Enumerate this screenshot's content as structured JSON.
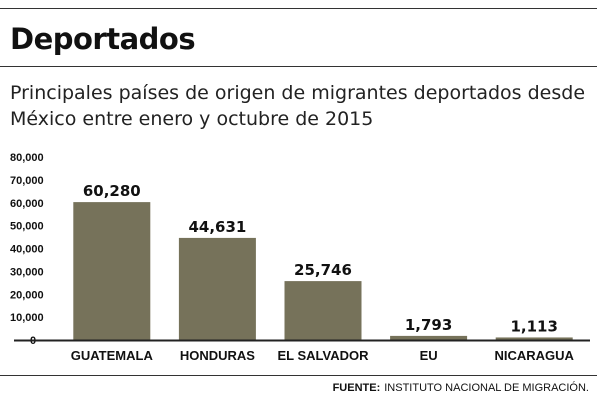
{
  "header": {
    "title": "Deportados",
    "subtitle": "Principales países de origen de migrantes deportados desde México entre enero y octubre de 2015"
  },
  "footer": {
    "source_label": "FUENTE:",
    "source_text": "INSTITUTO NACIONAL DE MIGRACIÓN."
  },
  "colors": {
    "bar": "#76725a",
    "axis": "#222222",
    "text": "#111111"
  },
  "chart_data": {
    "type": "bar",
    "categories": [
      "GUATEMALA",
      "HONDURAS",
      "EL SALVADOR",
      "EU",
      "NICARAGUA"
    ],
    "values": [
      60280,
      44631,
      25746,
      1793,
      1113
    ],
    "value_labels": [
      "60,280",
      "44,631",
      "25,746",
      "1,793",
      "1,113"
    ],
    "ylim": [
      0,
      80000
    ],
    "yticks": [
      0,
      10000,
      20000,
      30000,
      40000,
      50000,
      60000,
      70000,
      80000
    ],
    "ytick_labels": [
      "0",
      "10,000",
      "20,000",
      "30,000",
      "40,000",
      "50,000",
      "60,000",
      "70,000",
      "80,000"
    ],
    "grid": false,
    "legend": "none"
  }
}
